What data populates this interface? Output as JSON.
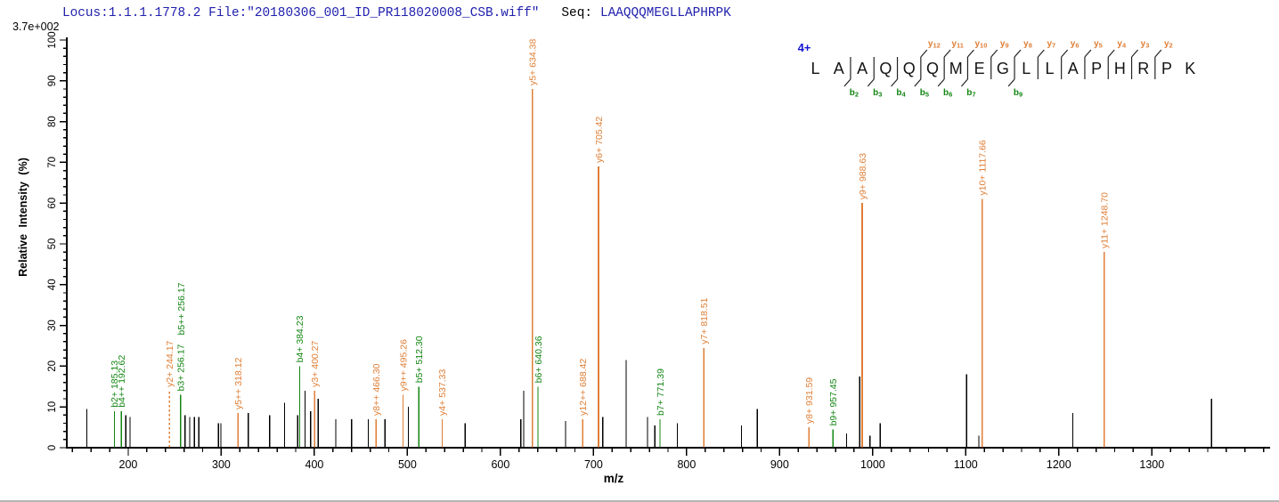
{
  "header": {
    "locus_file": "Locus:1.1.1.1778.2 File:\"20180306_001_ID_PR118020008_CSB.wiff\"",
    "seq_label": "Seq:",
    "sequence": "LAAQQQMEGLLAPHRPK",
    "base_peak_intensity": "3.7e+002"
  },
  "colors": {
    "header_blue": "#2121ae",
    "charge_blue": "#1414d2",
    "y_ion_orange": "#df7e35",
    "b_ion_green": "#138613",
    "peak_black": "#000000",
    "axis_black": "#000000",
    "cleavage_mark": "#222222"
  },
  "fragment_map": {
    "charge_label": "4+",
    "residues": [
      "L",
      "A",
      "A",
      "Q",
      "Q",
      "Q",
      "M",
      "E",
      "G",
      "L",
      "L",
      "A",
      "P",
      "H",
      "R",
      "P",
      "K"
    ],
    "y_ions": [
      {
        "letter": "y",
        "sub": "12",
        "after_residue": 5
      },
      {
        "letter": "y",
        "sub": "11",
        "after_residue": 6
      },
      {
        "letter": "y",
        "sub": "10",
        "after_residue": 7
      },
      {
        "letter": "y",
        "sub": "9",
        "after_residue": 8
      },
      {
        "letter": "y",
        "sub": "8",
        "after_residue": 9
      },
      {
        "letter": "y",
        "sub": "7",
        "after_residue": 10
      },
      {
        "letter": "y",
        "sub": "6",
        "after_residue": 11
      },
      {
        "letter": "y",
        "sub": "5",
        "after_residue": 12
      },
      {
        "letter": "y",
        "sub": "4",
        "after_residue": 13
      },
      {
        "letter": "y",
        "sub": "3",
        "after_residue": 14
      },
      {
        "letter": "y",
        "sub": "2",
        "after_residue": 15
      }
    ],
    "b_ions": [
      {
        "letter": "b",
        "sub": "2",
        "after_residue": 2
      },
      {
        "letter": "b",
        "sub": "3",
        "after_residue": 3
      },
      {
        "letter": "b",
        "sub": "4",
        "after_residue": 4
      },
      {
        "letter": "b",
        "sub": "5",
        "after_residue": 5
      },
      {
        "letter": "b",
        "sub": "6",
        "after_residue": 6
      },
      {
        "letter": "b",
        "sub": "7",
        "after_residue": 7
      },
      {
        "letter": "b",
        "sub": "9",
        "after_residue": 9
      }
    ]
  },
  "chart_data": {
    "type": "bar",
    "subtype": "ms2-centroid-spectrum",
    "title": "",
    "xlabel": "m/z",
    "ylabel": "Relative Intensity (%)",
    "xlim": [
      134,
      1427
    ],
    "ylim": [
      0,
      100
    ],
    "x_major_ticks": [
      200,
      300,
      400,
      500,
      600,
      700,
      800,
      900,
      1000,
      1100,
      1200,
      1300
    ],
    "x_minor_step": 20,
    "y_major_step": 10,
    "y_minor_step": 2,
    "grid": false,
    "legend": "none",
    "peaks": [
      {
        "mz": 155.5,
        "i": 9.5
      },
      {
        "mz": 185.13,
        "i": 9,
        "ion": "b",
        "label": "b2+ 185.13"
      },
      {
        "mz": 192.62,
        "i": 9,
        "ion": "b",
        "label": "b4++ 192.62"
      },
      {
        "mz": 197.5,
        "i": 8
      },
      {
        "mz": 202,
        "i": 7.5
      },
      {
        "mz": 244.17,
        "i": 14,
        "ion": "y",
        "label": "y2+ 244.17",
        "dashed": true
      },
      {
        "mz": 256.17,
        "i": 13,
        "ion": "b",
        "label": "b3+ 256.17"
      },
      {
        "mz": 261,
        "i": 8
      },
      {
        "mz": 266,
        "i": 7.5
      },
      {
        "mz": 271,
        "i": 7.5
      },
      {
        "mz": 276,
        "i": 7.5
      },
      {
        "mz": 297,
        "i": 6
      },
      {
        "mz": 299.5,
        "i": 6
      },
      {
        "mz": 318.12,
        "i": 8.5,
        "ion": "y",
        "label": "y5++ 318.12"
      },
      {
        "mz": 329,
        "i": 8.5
      },
      {
        "mz": 352,
        "i": 8
      },
      {
        "mz": 368,
        "i": 11
      },
      {
        "mz": 382,
        "i": 8
      },
      {
        "mz": 384.23,
        "i": 20,
        "ion": "b",
        "label": "b4+ 384.23"
      },
      {
        "mz": 390,
        "i": 14
      },
      {
        "mz": 396,
        "i": 9
      },
      {
        "mz": 400.27,
        "i": 14,
        "ion": "y",
        "label": "y3+ 400.27"
      },
      {
        "mz": 404,
        "i": 12
      },
      {
        "mz": 423,
        "i": 7
      },
      {
        "mz": 440,
        "i": 7
      },
      {
        "mz": 458,
        "i": 7
      },
      {
        "mz": 466.3,
        "i": 7,
        "ion": "y",
        "label": "y8++ 466.30"
      },
      {
        "mz": 476,
        "i": 7
      },
      {
        "mz": 495.26,
        "i": 13,
        "ion": "y",
        "label": "y9++ 495.26"
      },
      {
        "mz": 501,
        "i": 10
      },
      {
        "mz": 512.3,
        "i": 15,
        "ion": "b",
        "label": "b5+ 512.30"
      },
      {
        "mz": 537.33,
        "i": 7,
        "ion": "y",
        "label": "y4+ 537.33"
      },
      {
        "mz": 562,
        "i": 6
      },
      {
        "mz": 622,
        "i": 7
      },
      {
        "mz": 625,
        "i": 14
      },
      {
        "mz": 634.38,
        "i": 88,
        "ion": "y",
        "label": "y5+ 634.38"
      },
      {
        "mz": 640.36,
        "i": 15,
        "ion": "b",
        "label": "b6+ 640.36"
      },
      {
        "mz": 670,
        "i": 6.5
      },
      {
        "mz": 688.42,
        "i": 7,
        "ion": "y",
        "label": "y12++ 688.42"
      },
      {
        "mz": 705.42,
        "i": 69,
        "ion": "y",
        "label": "y6+ 705.42"
      },
      {
        "mz": 710,
        "i": 7.5
      },
      {
        "mz": 735,
        "i": 21.5
      },
      {
        "mz": 758,
        "i": 7.5
      },
      {
        "mz": 766,
        "i": 5.5
      },
      {
        "mz": 771.39,
        "i": 7,
        "ion": "b",
        "label": "b7+ 771.39"
      },
      {
        "mz": 790,
        "i": 6
      },
      {
        "mz": 818.51,
        "i": 24.5,
        "ion": "y",
        "label": "y7+ 818.51"
      },
      {
        "mz": 859,
        "i": 5.5
      },
      {
        "mz": 876,
        "i": 9.5
      },
      {
        "mz": 931.59,
        "i": 5,
        "ion": "y",
        "label": "y8+ 931.59"
      },
      {
        "mz": 957.45,
        "i": 4.5,
        "ion": "b",
        "label": "b9+ 957.45"
      },
      {
        "mz": 972,
        "i": 3.5
      },
      {
        "mz": 986,
        "i": 17.5
      },
      {
        "mz": 988.63,
        "i": 60,
        "ion": "y",
        "label": "y9+ 988.63"
      },
      {
        "mz": 997,
        "i": 3
      },
      {
        "mz": 1008,
        "i": 6
      },
      {
        "mz": 1101,
        "i": 18
      },
      {
        "mz": 1114,
        "i": 3
      },
      {
        "mz": 1117.66,
        "i": 61,
        "ion": "y",
        "label": "y10+ 1117.66"
      },
      {
        "mz": 1215,
        "i": 8.5
      },
      {
        "mz": 1248.7,
        "i": 48,
        "ion": "y",
        "label": "y11+ 1248.70"
      },
      {
        "mz": 1364,
        "i": 12
      }
    ],
    "stacked_labels": [
      {
        "text": "b5++ 256.17",
        "mz": 256.17,
        "ion": "b",
        "above_label_of_mz": 256.17
      }
    ]
  }
}
